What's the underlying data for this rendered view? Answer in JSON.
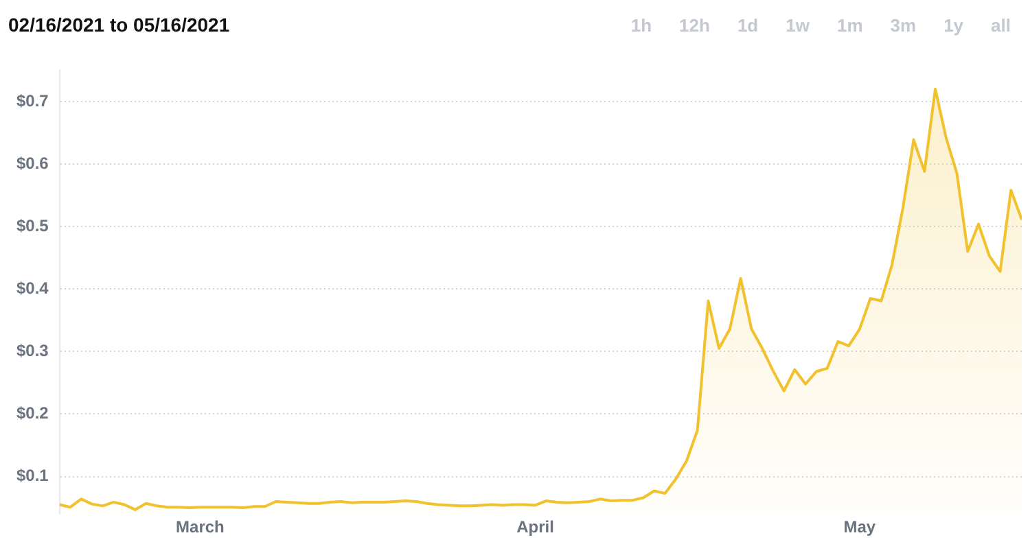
{
  "chart_data": {
    "type": "area",
    "title": "02/16/2021 to 05/16/2021",
    "annotations": [
      "1h",
      "12h",
      "1d",
      "1w",
      "1m",
      "3m",
      "1y",
      "all"
    ],
    "x": [
      "2021-02-16",
      "2021-02-17",
      "2021-02-18",
      "2021-02-19",
      "2021-02-20",
      "2021-02-21",
      "2021-02-22",
      "2021-02-23",
      "2021-02-24",
      "2021-02-25",
      "2021-02-26",
      "2021-02-27",
      "2021-02-28",
      "2021-03-01",
      "2021-03-02",
      "2021-03-03",
      "2021-03-04",
      "2021-03-05",
      "2021-03-06",
      "2021-03-07",
      "2021-03-08",
      "2021-03-09",
      "2021-03-10",
      "2021-03-11",
      "2021-03-12",
      "2021-03-13",
      "2021-03-14",
      "2021-03-15",
      "2021-03-16",
      "2021-03-17",
      "2021-03-18",
      "2021-03-19",
      "2021-03-20",
      "2021-03-21",
      "2021-03-22",
      "2021-03-23",
      "2021-03-24",
      "2021-03-25",
      "2021-03-26",
      "2021-03-27",
      "2021-03-28",
      "2021-03-29",
      "2021-03-30",
      "2021-03-31",
      "2021-04-01",
      "2021-04-02",
      "2021-04-03",
      "2021-04-04",
      "2021-04-05",
      "2021-04-06",
      "2021-04-07",
      "2021-04-08",
      "2021-04-09",
      "2021-04-10",
      "2021-04-11",
      "2021-04-12",
      "2021-04-13",
      "2021-04-14",
      "2021-04-15",
      "2021-04-16",
      "2021-04-17",
      "2021-04-18",
      "2021-04-19",
      "2021-04-20",
      "2021-04-21",
      "2021-04-22",
      "2021-04-23",
      "2021-04-24",
      "2021-04-25",
      "2021-04-26",
      "2021-04-27",
      "2021-04-28",
      "2021-04-29",
      "2021-04-30",
      "2021-05-01",
      "2021-05-02",
      "2021-05-03",
      "2021-05-04",
      "2021-05-05",
      "2021-05-06",
      "2021-05-07",
      "2021-05-08",
      "2021-05-09",
      "2021-05-10",
      "2021-05-11",
      "2021-05-12",
      "2021-05-13",
      "2021-05-14",
      "2021-05-15",
      "2021-05-16"
    ],
    "series": [
      {
        "color": "#f2c12e",
        "values": [
          0.055,
          0.051,
          0.064,
          0.056,
          0.053,
          0.059,
          0.055,
          0.047,
          0.057,
          0.053,
          0.051,
          0.051,
          0.05,
          0.051,
          0.051,
          0.051,
          0.051,
          0.05,
          0.052,
          0.052,
          0.06,
          0.059,
          0.058,
          0.057,
          0.057,
          0.059,
          0.06,
          0.058,
          0.059,
          0.059,
          0.059,
          0.06,
          0.061,
          0.06,
          0.057,
          0.055,
          0.054,
          0.053,
          0.053,
          0.054,
          0.055,
          0.054,
          0.055,
          0.055,
          0.054,
          0.061,
          0.059,
          0.058,
          0.059,
          0.06,
          0.064,
          0.061,
          0.062,
          0.062,
          0.066,
          0.077,
          0.073,
          0.096,
          0.125,
          0.174,
          0.381,
          0.305,
          0.336,
          0.417,
          0.336,
          0.305,
          0.269,
          0.237,
          0.271,
          0.248,
          0.268,
          0.273,
          0.316,
          0.309,
          0.336,
          0.385,
          0.381,
          0.439,
          0.529,
          0.639,
          0.588,
          0.72,
          0.642,
          0.585,
          0.46,
          0.504,
          0.453,
          0.428,
          0.558,
          0.511
        ]
      }
    ],
    "xlim": [
      "2021-02-16",
      "2021-05-16"
    ],
    "xticks": [
      {
        "value": "2021-03-01",
        "label": "March"
      },
      {
        "value": "2021-04-01",
        "label": "April"
      },
      {
        "value": "2021-05-01",
        "label": "May"
      }
    ],
    "ylim": [
      0.04,
      0.75
    ],
    "yticks": [
      {
        "value": 0.1,
        "label": "$0.1"
      },
      {
        "value": 0.2,
        "label": "$0.2"
      },
      {
        "value": 0.3,
        "label": "$0.3"
      },
      {
        "value": 0.4,
        "label": "$0.4"
      },
      {
        "value": 0.5,
        "label": "$0.5"
      },
      {
        "value": 0.6,
        "label": "$0.6"
      },
      {
        "value": 0.7,
        "label": "$0.7"
      }
    ],
    "grid": "y",
    "legend": false,
    "marker": "none",
    "line_style": "solid"
  }
}
